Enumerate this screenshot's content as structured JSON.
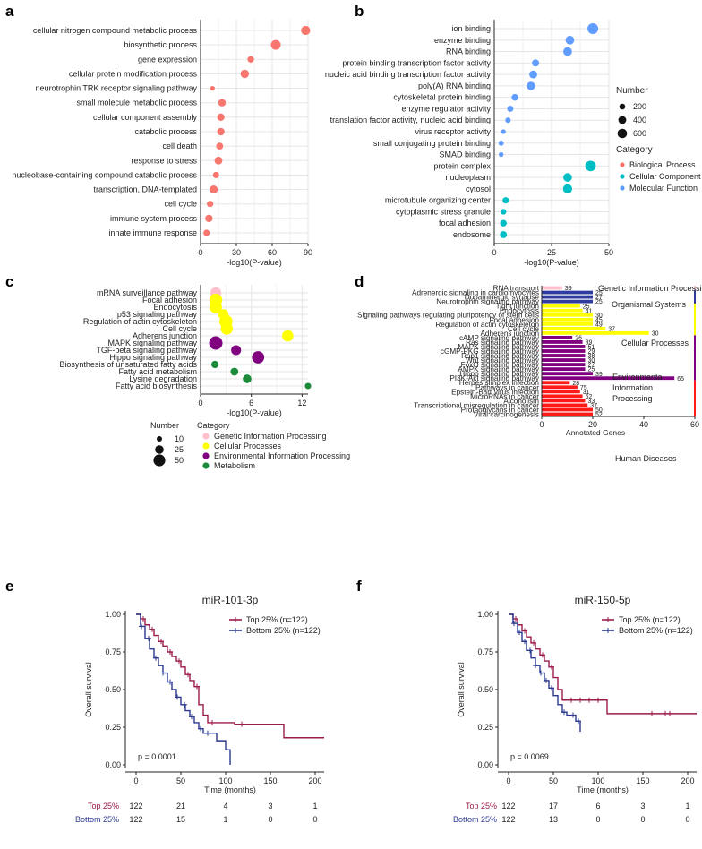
{
  "colors": {
    "biological": "#f8766d",
    "cellular_component": "#00bfc4",
    "molecular": "#619cff",
    "genetic": "#ffc0cb",
    "cellular_processes": "#ffff00",
    "environmental": "#800080",
    "metabolism": "#1b8a3a",
    "organismal": "#2f3b9e",
    "human_diseases": "#ff1a1a",
    "grid": "#e5e5e5",
    "top": "#9b1b4b",
    "bottom": "#2b3990"
  },
  "panel_labels": {
    "a": "a",
    "b": "b",
    "c": "c",
    "d": "d",
    "e": "e",
    "f": "f"
  },
  "chart_data": [
    {
      "id": "a",
      "type": "scatter",
      "xlabel": "-log10(P-value)",
      "xlim": [
        0,
        90
      ],
      "xticks": [
        0,
        30,
        60,
        90
      ],
      "categories": [
        "cellular nitrogen compound metabolic process",
        "biosynthetic process",
        "gene expression",
        "cellular protein modification process",
        "neurotrophin TRK receptor signaling pathway",
        "small molecule metabolic process",
        "cellular component assembly",
        "catabolic process",
        "cell death",
        "response to stress",
        "nucleobase-containing compound catabolic process",
        "transcription, DNA-templated",
        "cell cycle",
        "immune system process",
        "innate immune response"
      ],
      "x": [
        88,
        63,
        42,
        37,
        10,
        18,
        17,
        17,
        16,
        15,
        13,
        11,
        8,
        7,
        5
      ],
      "size": [
        420,
        520,
        150,
        330,
        40,
        230,
        220,
        230,
        190,
        270,
        140,
        300,
        140,
        230,
        140
      ],
      "category": [
        "bp",
        "bp",
        "bp",
        "bp",
        "bp",
        "bp",
        "bp",
        "bp",
        "bp",
        "bp",
        "bp",
        "bp",
        "bp",
        "bp",
        "bp"
      ]
    },
    {
      "id": "b",
      "type": "scatter",
      "xlabel": "-log10(P-value)",
      "xlim": [
        0,
        50
      ],
      "xticks": [
        0,
        25,
        50
      ],
      "categories": [
        "ion binding",
        "enzyme binding",
        "RNA binding",
        "protein binding transcription factor activity",
        "nucleic acid binding transcription factor activity",
        "poly(A) RNA binding",
        "cytoskeletal protein binding",
        "enzyme regulator activity",
        "translation factor activity, nucleic acid binding",
        "virus receptor activity",
        "small conjugating protein binding",
        "SMAD binding",
        "protein complex",
        "nucleoplasm",
        "cytosol",
        "microtubule organizing center",
        "cytoplasmic stress granule",
        "focal adhesion",
        "endosome"
      ],
      "x": [
        43,
        33,
        32,
        18,
        17,
        16,
        9,
        7,
        6,
        4,
        3,
        3,
        42,
        32,
        32,
        5,
        4,
        4,
        4
      ],
      "size": [
        600,
        330,
        340,
        180,
        250,
        300,
        150,
        110,
        70,
        40,
        60,
        40,
        570,
        330,
        390,
        120,
        90,
        140,
        170
      ],
      "category": [
        "mf",
        "mf",
        "mf",
        "mf",
        "mf",
        "mf",
        "mf",
        "mf",
        "mf",
        "mf",
        "mf",
        "mf",
        "cc",
        "cc",
        "cc",
        "cc",
        "cc",
        "cc",
        "cc"
      ],
      "legend": {
        "size_title": "Number",
        "size_values": [
          200,
          400,
          600
        ],
        "color_title": "Category",
        "color_items": [
          {
            "key": "bp",
            "label": "Biological Process"
          },
          {
            "key": "cc",
            "label": "Cellular Component"
          },
          {
            "key": "mf",
            "label": "Molecular Function"
          }
        ]
      }
    },
    {
      "id": "c",
      "type": "scatter",
      "xlabel": "-log10(P-value)",
      "xlim": [
        0,
        12.7
      ],
      "xticks": [
        0,
        6,
        12
      ],
      "categories": [
        "mRNA surveillance pathway",
        "Focal adhesion",
        "Endocytosis",
        "p53 signaling pathway",
        "Regulation of actin cytoskeleton",
        "Cell cycle",
        "Adherens junction",
        "MAPK signaling pathway",
        "TGF-beta signaling pathway",
        "Hippo signaling pathway",
        "Biosynthesis of unsaturated fatty acids",
        "Fatty acid metabolism",
        "Lysine degradation",
        "Fatty acid biosynthesis"
      ],
      "x": [
        1.8,
        1.8,
        1.8,
        2.7,
        3.0,
        3.1,
        10.3,
        1.8,
        4.2,
        6.8,
        1.7,
        4.0,
        5.5,
        12.7
      ],
      "size": [
        28,
        45,
        41,
        22,
        49,
        37,
        30,
        51,
        20,
        39,
        6,
        8,
        12,
        3
      ],
      "category": [
        "gen",
        "cp",
        "cp",
        "cp",
        "cp",
        "cp",
        "cp",
        "env",
        "env",
        "env",
        "met",
        "met",
        "met",
        "met"
      ],
      "legend": {
        "size_title": "Number",
        "size_values": [
          10,
          25,
          50
        ],
        "color_title": "Category",
        "color_items": [
          {
            "key": "gen",
            "label": "Genetic Information Processing"
          },
          {
            "key": "cp",
            "label": "Cellular Processes"
          },
          {
            "key": "env",
            "label": "Environmental Information Processing"
          },
          {
            "key": "met",
            "label": "Metabolism"
          }
        ]
      }
    },
    {
      "id": "d",
      "type": "bar",
      "xlabel": "Annotated Genes",
      "xlim": [
        0,
        60
      ],
      "xticks": [
        0,
        20,
        40,
        60
      ],
      "categories": [
        "RNA transport",
        "Adrenergic signaling in cardiomyocytes",
        "Dopaminergic synapse",
        "Neurotrophin signaling pathway",
        "Tight junction",
        "Endocytosis",
        "Signaling pathways regulating pluripotency of stem cells",
        "Focal adhesion",
        "Regulation of actin cytoskeleton",
        "Cell cycle",
        "Adherens junction",
        "cAMP signaling pathway",
        "Ras signaling pathway",
        "MAPK signaling pathway",
        "cGMP-PKG signaling pathway",
        "Rap1 signaling pathway",
        "Wnt signaling pathway",
        "FoxO signaling pathway",
        "AMPK signaling pathway",
        "Hippo signaling pathway",
        "PI3K-Akt signaling pathway",
        "Herpes simplex infection",
        "Pathways in cancer",
        "Epstein-Barr virus infection",
        "MicroRNAs in cancer",
        "Alcoholism",
        "Transcriptional misregulation in cancer",
        "Proteoglycans in cancer",
        "Viral carcinogenesis"
      ],
      "values": [
        8,
        20,
        20,
        20,
        15,
        16,
        20,
        20,
        20,
        25,
        42,
        12,
        16,
        17,
        17,
        17,
        17,
        17,
        17,
        20,
        52,
        11,
        14,
        15,
        16,
        17,
        18,
        20,
        20
      ],
      "labels": [
        "39",
        "25",
        "27",
        "25",
        "25",
        "41",
        "30",
        "45",
        "49",
        "37",
        "30",
        "26",
        "39",
        "51",
        "29",
        "38",
        "30",
        "27",
        "25",
        "39",
        "65",
        "28",
        "75",
        "31",
        "52",
        "33",
        "37",
        "50",
        "52"
      ],
      "category": [
        "gen",
        "org",
        "org",
        "org",
        "cp",
        "cp",
        "cp",
        "cp",
        "cp",
        "cp",
        "cp",
        "env",
        "env",
        "env",
        "env",
        "env",
        "env",
        "env",
        "env",
        "env",
        "env",
        "hd",
        "hd",
        "hd",
        "hd",
        "hd",
        "hd",
        "hd",
        "hd"
      ],
      "groups": [
        {
          "key": "gen",
          "label": [
            "Genetic Information Processing"
          ]
        },
        {
          "key": "org",
          "label": [
            "Organismal Systems"
          ]
        },
        {
          "key": "cp",
          "label": [
            "Cellular Processes"
          ]
        },
        {
          "key": "env",
          "label": [
            "Environmental",
            "Information",
            "Processing"
          ]
        },
        {
          "key": "hd",
          "label": [
            "Human Diseases"
          ]
        }
      ]
    },
    {
      "id": "e",
      "type": "line",
      "title": "miR-101-3p",
      "xlabel": "Time (months)",
      "ylabel": "Overall survival",
      "xlim": [
        0,
        210
      ],
      "ylim": [
        0,
        1
      ],
      "xticks": [
        0,
        50,
        100,
        150,
        200
      ],
      "yticks": [
        0.0,
        0.25,
        0.5,
        0.75,
        1.0
      ],
      "pvalue": "p = 0.0001",
      "series": [
        {
          "name": "Top 25% (n=122)",
          "key": "top",
          "x": [
            0,
            5,
            10,
            15,
            20,
            25,
            30,
            35,
            40,
            45,
            50,
            55,
            60,
            65,
            70,
            75,
            80,
            90,
            110,
            140,
            165,
            210
          ],
          "y": [
            1.0,
            0.97,
            0.93,
            0.9,
            0.86,
            0.82,
            0.79,
            0.75,
            0.72,
            0.69,
            0.65,
            0.6,
            0.56,
            0.52,
            0.4,
            0.33,
            0.28,
            0.28,
            0.27,
            0.27,
            0.18,
            0.18
          ],
          "censor_x": [
            8,
            18,
            28,
            38,
            48,
            58,
            68,
            85,
            118
          ]
        },
        {
          "name": "Bottom 25% (n=122)",
          "key": "bottom",
          "x": [
            0,
            5,
            10,
            15,
            20,
            25,
            30,
            35,
            40,
            45,
            50,
            55,
            60,
            65,
            70,
            75,
            80,
            85,
            90,
            100,
            105
          ],
          "y": [
            1.0,
            0.92,
            0.84,
            0.77,
            0.71,
            0.66,
            0.61,
            0.55,
            0.5,
            0.45,
            0.4,
            0.36,
            0.32,
            0.28,
            0.24,
            0.21,
            0.21,
            0.21,
            0.16,
            0.1,
            0.0
          ],
          "censor_x": [
            6,
            14,
            22,
            30,
            38,
            46,
            54,
            62,
            72,
            80
          ]
        }
      ],
      "risk_table": {
        "times": [
          0,
          50,
          100,
          150,
          200
        ],
        "rows": [
          {
            "label": "Top 25%",
            "key": "top",
            "values": [
              "122",
              "21",
              "4",
              "3",
              "1"
            ]
          },
          {
            "label": "Bottom 25%",
            "key": "bottom",
            "values": [
              "122",
              "15",
              "1",
              "0",
              "0"
            ]
          }
        ]
      }
    },
    {
      "id": "f",
      "type": "line",
      "title": "miR-150-5p",
      "xlabel": "Time (months)",
      "ylabel": "Overall survival",
      "xlim": [
        0,
        210
      ],
      "ylim": [
        0,
        1
      ],
      "xticks": [
        0,
        50,
        100,
        150,
        200
      ],
      "yticks": [
        0.0,
        0.25,
        0.5,
        0.75,
        1.0
      ],
      "pvalue": "p = 0.0069",
      "series": [
        {
          "name": "Top 25% (n=122)",
          "key": "top",
          "x": [
            0,
            5,
            10,
            15,
            20,
            25,
            30,
            35,
            40,
            45,
            50,
            55,
            60,
            65,
            110,
            210
          ],
          "y": [
            1.0,
            0.97,
            0.93,
            0.89,
            0.85,
            0.81,
            0.77,
            0.73,
            0.69,
            0.65,
            0.58,
            0.5,
            0.43,
            0.43,
            0.34,
            0.34
          ],
          "censor_x": [
            8,
            18,
            28,
            38,
            48,
            70,
            80,
            90,
            100,
            160,
            175,
            180
          ]
        },
        {
          "name": "Bottom 25% (n=122)",
          "key": "bottom",
          "x": [
            0,
            5,
            10,
            15,
            20,
            25,
            30,
            35,
            40,
            45,
            50,
            55,
            60,
            65,
            70,
            75,
            80
          ],
          "y": [
            1.0,
            0.94,
            0.88,
            0.82,
            0.76,
            0.71,
            0.66,
            0.61,
            0.56,
            0.51,
            0.46,
            0.4,
            0.35,
            0.33,
            0.33,
            0.29,
            0.22
          ],
          "censor_x": [
            6,
            12,
            18,
            24,
            30,
            36,
            42,
            48,
            62,
            72,
            78
          ]
        }
      ],
      "risk_table": {
        "times": [
          0,
          50,
          100,
          150,
          200
        ],
        "rows": [
          {
            "label": "Top 25%",
            "key": "top",
            "values": [
              "122",
              "17",
              "6",
              "3",
              "1"
            ]
          },
          {
            "label": "Bottom 25%",
            "key": "bottom",
            "values": [
              "122",
              "13",
              "0",
              "0",
              "0"
            ]
          }
        ]
      }
    }
  ]
}
